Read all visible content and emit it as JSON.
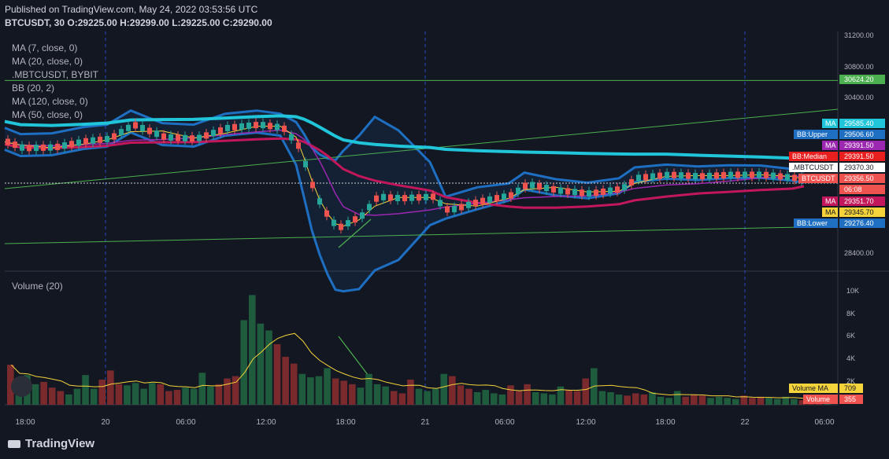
{
  "header": {
    "published": "Published on TradingView.com, May 24, 2022 03:53:56 UTC",
    "symbol": "BTCUSDT, 30",
    "o_label": "O:",
    "o": "29225.00",
    "h_label": "H:",
    "h": "29299.00",
    "l_label": "L:",
    "l": "29225.00",
    "c_label": "C:",
    "c": "29290.00"
  },
  "legend": [
    "MA (7, close, 0)",
    "MA (20, close, 0)",
    ".MBTCUSDT, BYBIT",
    "BB (20, 2)",
    "MA (120, close, 0)",
    "MA (50, close, 0)"
  ],
  "volume_legend": "Volume (20)",
  "branding": "TradingView",
  "colors": {
    "bg": "#131722",
    "up": "#26a69a",
    "down": "#ef5350",
    "bb": "#1e6fc2",
    "mbtc": "#20c5d9",
    "ma120": "#c2185b",
    "ma50": "#9c27b0",
    "ma7": "#f5d33b",
    "trend": "#4caf50",
    "vol_up": "#1f5c3e",
    "vol_down": "#7a2a2d"
  },
  "chart_data": {
    "type": "candlestick",
    "title": "BTCUSDT, 30",
    "x_ticks": [
      "18:00",
      "20",
      "06:00",
      "12:00",
      "18:00",
      "21",
      "06:00",
      "12:00",
      "18:00",
      "22",
      "06:00"
    ],
    "y_ticks": [
      "31200.00",
      "30800.00",
      "30400.00",
      "28400.00"
    ],
    "volume_ticks": [
      "10K",
      "8K",
      "6K",
      "4K",
      "2K"
    ],
    "price_range": [
      28200,
      31250
    ],
    "volume_range": [
      0,
      11000
    ],
    "price_labels": [
      {
        "name": "",
        "value": "30624.20",
        "color": "#4caf50"
      },
      {
        "name": "MA",
        "value": "29585.40",
        "color": "#20c5d9"
      },
      {
        "name": "BB:Upper",
        "value": "29506.60",
        "color": "#1e6fc2"
      },
      {
        "name": "MA",
        "value": "29391.50",
        "color": "#9c27b0"
      },
      {
        "name": "BB:Median",
        "value": "29391.50",
        "color": "#e91e1e"
      },
      {
        "name": ".MBTCUSDT",
        "value": "29370.30",
        "color": "#ffffff"
      },
      {
        "name": "BTCUSDT",
        "value": "29356.50",
        "color": "#ef5350"
      },
      {
        "name": "",
        "value": "06:08",
        "color": "#ef5350"
      },
      {
        "name": "MA",
        "value": "29351.70",
        "color": "#c2185b"
      },
      {
        "name": "MA",
        "value": "29345.70",
        "color": "#f5d33b"
      },
      {
        "name": "BB:Lower",
        "value": "29276.40",
        "color": "#1e6fc2"
      }
    ],
    "volume_labels": [
      {
        "name": "Volume MA",
        "value": "709",
        "color": "#f5d33b"
      },
      {
        "name": "Volume",
        "value": "355",
        "color": "#ef5350"
      }
    ],
    "price_series": [
      [
        0,
        29840
      ],
      [
        20,
        29760
      ],
      [
        60,
        29770
      ],
      [
        100,
        29850
      ],
      [
        130,
        29880
      ],
      [
        160,
        30060
      ],
      [
        200,
        29900
      ],
      [
        240,
        29880
      ],
      [
        280,
        30020
      ],
      [
        320,
        30060
      ],
      [
        350,
        30020
      ],
      [
        370,
        29780
      ],
      [
        380,
        29500
      ],
      [
        390,
        29200
      ],
      [
        400,
        29000
      ],
      [
        410,
        28850
      ],
      [
        420,
        28740
      ],
      [
        430,
        28790
      ],
      [
        450,
        28900
      ],
      [
        470,
        29140
      ],
      [
        500,
        29120
      ],
      [
        540,
        29140
      ],
      [
        560,
        28960
      ],
      [
        600,
        29080
      ],
      [
        640,
        29160
      ],
      [
        660,
        29300
      ],
      [
        700,
        29220
      ],
      [
        740,
        29180
      ],
      [
        780,
        29240
      ],
      [
        800,
        29380
      ],
      [
        840,
        29420
      ],
      [
        880,
        29400
      ],
      [
        920,
        29420
      ],
      [
        960,
        29420
      ],
      [
        1000,
        29380
      ],
      [
        1015,
        29350
      ]
    ],
    "volume_values": [
      3500,
      2000,
      2600,
      1800,
      2000,
      1500,
      1200,
      900,
      1400,
      2600,
      1400,
      2200,
      3000,
      1800,
      1700,
      1900,
      1400,
      1900,
      1800,
      1200,
      1300,
      1500,
      1400,
      2800,
      1600,
      1800,
      2300,
      2500,
      7400,
      9600,
      7100,
      6500,
      5300,
      4200,
      3600,
      2700,
      2400,
      2500,
      3200,
      2300,
      2100,
      1800,
      1500,
      2700,
      1800,
      1600,
      1200,
      1000,
      2200,
      1400,
      1200,
      1400,
      2700,
      2500,
      1700,
      1400,
      1100,
      1300,
      1000,
      900,
      1700,
      1200,
      1800,
      1100,
      1000,
      900,
      1600,
      1300,
      1200,
      2300,
      3200,
      1200,
      1100,
      900,
      800,
      1000,
      900,
      1100,
      700,
      600,
      1200,
      700,
      900,
      800,
      600,
      700,
      600,
      500,
      800,
      600,
      700,
      600,
      500,
      700,
      500,
      400,
      600,
      500,
      355
    ]
  }
}
